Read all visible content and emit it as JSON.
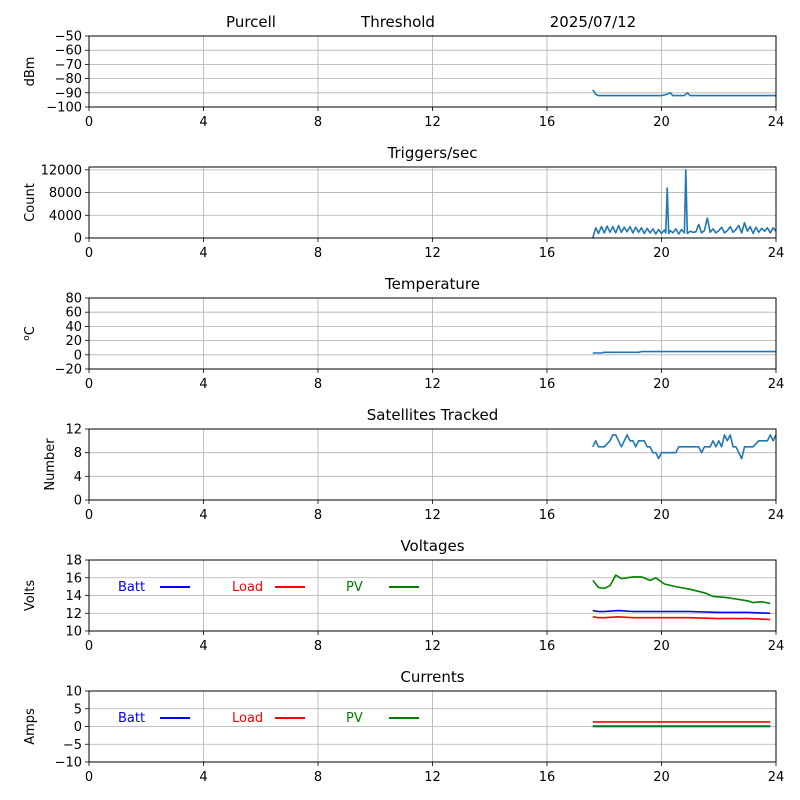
{
  "header": {
    "site": "Purcell",
    "title": "Threshold",
    "date": "2025/07/12"
  },
  "chart_data": [
    {
      "type": "line",
      "title": "",
      "xlabel": "",
      "ylabel": "dBm",
      "xlim": [
        0,
        24
      ],
      "ylim": [
        -100,
        -50
      ],
      "xticks": [
        0,
        4,
        8,
        12,
        16,
        20,
        24
      ],
      "yticks": [
        -100,
        -90,
        -80,
        -70,
        -60,
        -50
      ],
      "ytick_labels": [
        "−100",
        "−90",
        "−80",
        "−70",
        "−60",
        "−50"
      ],
      "grid": true,
      "series": [
        {
          "color": "#1f77b4",
          "x": [
            17.6,
            17.7,
            17.8,
            18.2,
            18.8,
            19.4,
            20.0,
            20.2,
            20.3,
            20.4,
            20.8,
            20.9,
            21.0,
            21.5,
            22.0,
            22.5,
            23.0,
            23.5,
            24.0
          ],
          "y": [
            -88,
            -91,
            -92,
            -92,
            -92,
            -92,
            -92,
            -91,
            -90,
            -92,
            -92,
            -90,
            -92,
            -92,
            -92,
            -92,
            -92,
            -92,
            -92
          ]
        }
      ]
    },
    {
      "type": "line",
      "title": "Triggers/sec",
      "xlabel": "",
      "ylabel": "Count",
      "xlim": [
        0,
        24
      ],
      "ylim": [
        0,
        12500
      ],
      "xticks": [
        0,
        4,
        8,
        12,
        16,
        20,
        24
      ],
      "yticks": [
        0,
        4000,
        8000,
        12000
      ],
      "ytick_labels": [
        "0",
        "4000",
        "8000",
        "12000"
      ],
      "grid": true,
      "series": [
        {
          "color": "#1f77b4",
          "x": [
            17.6,
            17.7,
            17.8,
            17.9,
            18.0,
            18.1,
            18.2,
            18.3,
            18.4,
            18.5,
            18.6,
            18.7,
            18.8,
            18.9,
            19.0,
            19.1,
            19.2,
            19.3,
            19.4,
            19.5,
            19.6,
            19.7,
            19.8,
            19.9,
            20.0,
            20.1,
            20.15,
            20.2,
            20.25,
            20.3,
            20.4,
            20.5,
            20.6,
            20.7,
            20.8,
            20.85,
            20.9,
            21.0,
            21.1,
            21.2,
            21.3,
            21.4,
            21.5,
            21.6,
            21.7,
            21.8,
            21.9,
            22.0,
            22.1,
            22.2,
            22.3,
            22.4,
            22.5,
            22.6,
            22.7,
            22.8,
            22.9,
            23.0,
            23.1,
            23.2,
            23.3,
            23.4,
            23.5,
            23.6,
            23.7,
            23.8,
            23.9,
            24.0
          ],
          "y": [
            0,
            1800,
            800,
            2000,
            900,
            2100,
            1000,
            2000,
            900,
            2200,
            1000,
            1900,
            1100,
            2000,
            900,
            1900,
            1000,
            1800,
            800,
            1700,
            900,
            1600,
            700,
            1500,
            800,
            1400,
            900,
            8800,
            800,
            1300,
            900,
            1600,
            700,
            1500,
            900,
            12000,
            800,
            1200,
            1000,
            1100,
            2400,
            900,
            1300,
            3500,
            1000,
            1600,
            900,
            1300,
            1900,
            900,
            1300,
            2000,
            1000,
            1500,
            2200,
            900,
            2700,
            1200,
            2000,
            800,
            1900,
            1000,
            1700,
            1200,
            1800,
            900,
            1800,
            1200
          ]
        }
      ]
    },
    {
      "type": "line",
      "title": "Temperature",
      "xlabel": "",
      "ylabel": "oC",
      "xlim": [
        0,
        24
      ],
      "ylim": [
        -20,
        80
      ],
      "xticks": [
        0,
        4,
        8,
        12,
        16,
        20,
        24
      ],
      "yticks": [
        -20,
        0,
        20,
        40,
        60,
        80
      ],
      "ytick_labels": [
        "−20",
        "0",
        "20",
        "40",
        "60",
        "80"
      ],
      "grid": true,
      "series": [
        {
          "color": "#1f77b4",
          "x": [
            17.6,
            17.9,
            18.0,
            18.6,
            19.2,
            19.3,
            20.0,
            21.0,
            22.0,
            23.0,
            24.0
          ],
          "y": [
            2.5,
            2.5,
            3.5,
            3.5,
            3.5,
            4.5,
            4.5,
            4.5,
            4.5,
            4.5,
            4.5
          ]
        }
      ]
    },
    {
      "type": "line",
      "title": "Satellites Tracked",
      "xlabel": "",
      "ylabel": "Number",
      "xlim": [
        0,
        24
      ],
      "ylim": [
        0,
        12
      ],
      "xticks": [
        0,
        4,
        8,
        12,
        16,
        20,
        24
      ],
      "yticks": [
        0,
        4,
        8,
        12
      ],
      "ytick_labels": [
        "0",
        "4",
        "8",
        "12"
      ],
      "grid": true,
      "series": [
        {
          "color": "#1f77b4",
          "x": [
            17.6,
            17.7,
            17.8,
            17.9,
            18.0,
            18.2,
            18.3,
            18.4,
            18.5,
            18.6,
            18.7,
            18.8,
            18.9,
            19.0,
            19.1,
            19.2,
            19.4,
            19.5,
            19.6,
            19.7,
            19.8,
            19.9,
            20.0,
            20.1,
            20.2,
            20.3,
            20.5,
            20.6,
            20.7,
            20.8,
            21.0,
            21.2,
            21.3,
            21.4,
            21.5,
            21.6,
            21.7,
            21.8,
            21.9,
            22.0,
            22.1,
            22.2,
            22.3,
            22.4,
            22.5,
            22.6,
            22.7,
            22.8,
            22.9,
            23.0,
            23.2,
            23.4,
            23.6,
            23.7,
            23.8,
            23.9,
            24.0
          ],
          "y": [
            9,
            10,
            9,
            9,
            9,
            10,
            11,
            11,
            10,
            9,
            10,
            11,
            10,
            10,
            9,
            10,
            10,
            9,
            9,
            8,
            8,
            7,
            8,
            8,
            8,
            8,
            8,
            9,
            9,
            9,
            9,
            9,
            9,
            8,
            9,
            9,
            9,
            10,
            9,
            10,
            9,
            11,
            10,
            11,
            9,
            9,
            8,
            7,
            9,
            9,
            9,
            10,
            10,
            10,
            11,
            10,
            11
          ]
        }
      ]
    },
    {
      "type": "line",
      "title": "Voltages",
      "xlabel": "",
      "ylabel": "Volts",
      "xlim": [
        0,
        24
      ],
      "ylim": [
        10,
        18
      ],
      "xticks": [
        0,
        4,
        8,
        12,
        16,
        20,
        24
      ],
      "yticks": [
        10,
        12,
        14,
        16,
        18
      ],
      "ytick_labels": [
        "10",
        "12",
        "14",
        "16",
        "18"
      ],
      "grid": true,
      "legend": [
        "Batt",
        "Load",
        "PV"
      ],
      "legend_placement": "top-left",
      "series": [
        {
          "name": "Batt",
          "color": "#0000ff",
          "x": [
            17.6,
            17.8,
            18.0,
            18.5,
            19.0,
            20.0,
            21.0,
            22.0,
            23.0,
            23.8
          ],
          "y": [
            12.3,
            12.2,
            12.2,
            12.3,
            12.2,
            12.2,
            12.2,
            12.1,
            12.1,
            12.0
          ]
        },
        {
          "name": "Load",
          "color": "#ff0000",
          "x": [
            17.6,
            17.8,
            18.0,
            18.5,
            19.0,
            20.0,
            21.0,
            22.0,
            23.0,
            23.8
          ],
          "y": [
            11.6,
            11.5,
            11.5,
            11.6,
            11.5,
            11.5,
            11.5,
            11.4,
            11.4,
            11.3
          ]
        },
        {
          "name": "PV",
          "color": "#008000",
          "x": [
            17.6,
            17.8,
            18.0,
            18.2,
            18.4,
            18.6,
            19.0,
            19.3,
            19.6,
            19.8,
            20.1,
            20.5,
            21.0,
            21.5,
            21.8,
            22.2,
            22.6,
            23.0,
            23.2,
            23.5,
            23.8
          ],
          "y": [
            15.7,
            14.9,
            14.8,
            15.1,
            16.3,
            15.9,
            16.1,
            16.1,
            15.7,
            16.0,
            15.3,
            15.0,
            14.7,
            14.3,
            13.9,
            13.8,
            13.6,
            13.4,
            13.2,
            13.3,
            13.1
          ]
        }
      ]
    },
    {
      "type": "line",
      "title": "Currents",
      "xlabel": "",
      "ylabel": "Amps",
      "xlim": [
        0,
        24
      ],
      "ylim": [
        -10,
        10
      ],
      "xticks": [
        0,
        4,
        8,
        12,
        16,
        20,
        24
      ],
      "yticks": [
        -10,
        -5,
        0,
        5,
        10
      ],
      "ytick_labels": [
        "−10",
        "−5",
        "0",
        "5",
        "10"
      ],
      "grid": true,
      "legend": [
        "Batt",
        "Load",
        "PV"
      ],
      "legend_placement": "top-left",
      "series": [
        {
          "name": "Batt",
          "color": "#0000ff",
          "x": [
            17.6,
            23.8
          ],
          "y": [
            0,
            0
          ]
        },
        {
          "name": "Load",
          "color": "#ff0000",
          "x": [
            17.6,
            18.0,
            20.0,
            22.0,
            23.8
          ],
          "y": [
            1.3,
            1.3,
            1.3,
            1.3,
            1.3
          ]
        },
        {
          "name": "PV",
          "color": "#008000",
          "x": [
            17.6,
            20.0,
            23.8
          ],
          "y": [
            0.1,
            0.1,
            0.1
          ]
        }
      ]
    }
  ]
}
